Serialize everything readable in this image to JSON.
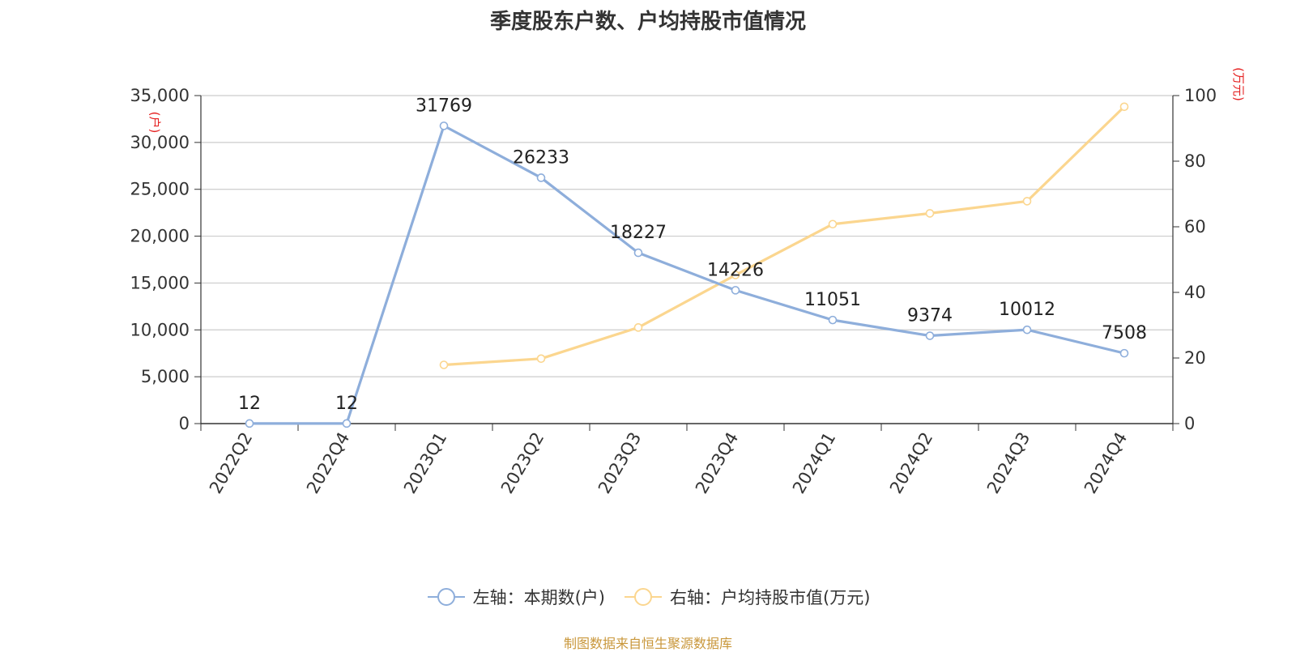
{
  "chart_data": {
    "type": "line",
    "title": "季度股东户数、户均持股市值情况",
    "categories": [
      "2022Q2",
      "2022Q4",
      "2023Q1",
      "2023Q2",
      "2023Q3",
      "2023Q4",
      "2024Q1",
      "2024Q2",
      "2024Q3",
      "2024Q4"
    ],
    "left_axis": {
      "unit": "(户)",
      "ticks": [
        "0",
        "5,000",
        "10,000",
        "15,000",
        "20,000",
        "25,000",
        "30,000",
        "35,000"
      ],
      "ylim": [
        0,
        35000
      ]
    },
    "right_axis": {
      "unit": "(万元)",
      "ticks": [
        "0",
        "20",
        "40",
        "60",
        "80",
        "100"
      ],
      "ylim": [
        0,
        100
      ]
    },
    "series": [
      {
        "name": "左轴：本期数(户)",
        "axis": "left",
        "color": "#8eaedb",
        "values": [
          12,
          12,
          31769,
          26233,
          18227,
          14226,
          11051,
          9374,
          10012,
          7508
        ],
        "labels": [
          "12",
          "12",
          "31769",
          "26233",
          "18227",
          "14226",
          "11051",
          "9374",
          "10012",
          "7508"
        ]
      },
      {
        "name": "右轴：户均持股市值(万元)",
        "axis": "right",
        "color": "#fbd68f",
        "values": [
          null,
          null,
          17.9,
          19.8,
          29.3,
          45.3,
          60.8,
          64.1,
          67.8,
          96.6
        ]
      }
    ],
    "grid": true,
    "legend_position": "bottom"
  },
  "source": "制图数据来自恒生聚源数据库"
}
